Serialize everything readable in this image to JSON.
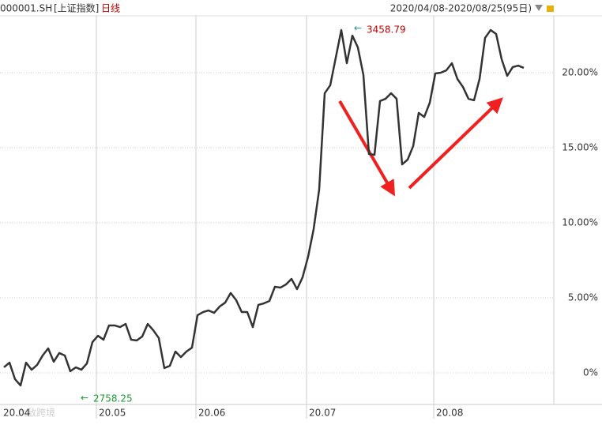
{
  "header": {
    "code": "000001.SH",
    "name": "[上证指数]",
    "period": "日线",
    "range": "2020/04/08-2020/08/25(95日)"
  },
  "chart_data": {
    "type": "line",
    "categories": [
      "20.04",
      null,
      null,
      null,
      null,
      null,
      null,
      null,
      null,
      null,
      null,
      null,
      null,
      null,
      null,
      null,
      null,
      "20.05",
      null,
      null,
      null,
      null,
      null,
      null,
      null,
      null,
      null,
      null,
      null,
      null,
      null,
      null,
      null,
      null,
      null,
      "20.06",
      null,
      null,
      null,
      null,
      null,
      null,
      null,
      null,
      null,
      null,
      null,
      null,
      null,
      null,
      null,
      null,
      null,
      null,
      null,
      "20.07",
      null,
      null,
      null,
      null,
      null,
      null,
      null,
      null,
      null,
      null,
      null,
      null,
      null,
      null,
      null,
      null,
      null,
      null,
      null,
      null,
      null,
      null,
      "20.08",
      null,
      null,
      null,
      null,
      null,
      null,
      null,
      null,
      null,
      null,
      null,
      null,
      null,
      null,
      null,
      null
    ],
    "series": [
      {
        "name": "000001.SH",
        "color": "#333333",
        "values": [
          0.37,
          0.68,
          -0.42,
          -0.84,
          0.68,
          0.21,
          0.53,
          1.16,
          1.63,
          0.74,
          1.32,
          1.16,
          0.11,
          0.37,
          0.21,
          0.63,
          2.05,
          2.47,
          2.21,
          3.16,
          3.16,
          3.05,
          3.26,
          2.21,
          2.16,
          2.42,
          3.26,
          2.84,
          2.32,
          0.32,
          0.47,
          1.42,
          1.05,
          1.42,
          1.68,
          3.84,
          4.05,
          4.16,
          4.0,
          4.42,
          4.68,
          5.32,
          4.84,
          4.05,
          4.05,
          3.05,
          4.53,
          4.63,
          4.79,
          5.74,
          5.68,
          5.89,
          6.26,
          5.58,
          6.37,
          7.74,
          9.58,
          12.21,
          18.63,
          19.16,
          21.0,
          22.84,
          20.63,
          22.47,
          21.68,
          19.84,
          14.58,
          14.53,
          18.11,
          18.26,
          18.63,
          18.26,
          13.89,
          14.21,
          15.11,
          17.32,
          17.05,
          18.0,
          19.95,
          20.0,
          20.16,
          20.63,
          19.58,
          19.05,
          18.26,
          18.16,
          19.58,
          22.32,
          22.84,
          22.58,
          20.89,
          19.79,
          20.37,
          20.47,
          20.32
        ]
      }
    ],
    "ylim": [
      -2,
      23.79
    ],
    "yticks": [
      {
        "value": 0,
        "label": "0%"
      },
      {
        "value": 5,
        "label": "5.00%"
      },
      {
        "value": 10,
        "label": "10.00%"
      },
      {
        "value": 15,
        "label": "15.00%"
      },
      {
        "value": 20,
        "label": "20.00%"
      }
    ],
    "grid": true,
    "annotations": [
      "3458.79",
      "2758.25"
    ],
    "watermark": "六敌跨境"
  }
}
